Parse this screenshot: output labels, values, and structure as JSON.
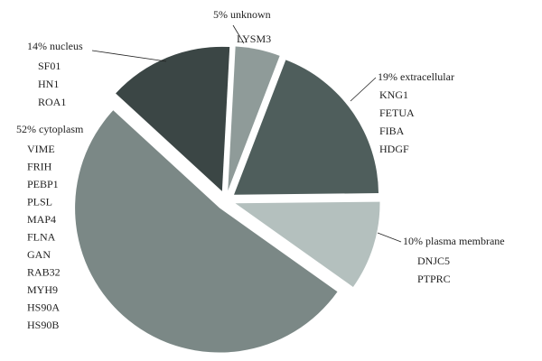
{
  "chart_data": {
    "type": "pie",
    "categories": [
      "unknown",
      "extracellular",
      "plasma membrane",
      "cytoplasm",
      "nucleus"
    ],
    "values": [
      5,
      19,
      10,
      52,
      14
    ],
    "value_labels": [
      "5%",
      "19%",
      "10%",
      "52%",
      "14%"
    ],
    "colors": [
      "#8f9b99",
      "#4f5e5c",
      "#b4c0be",
      "#7b8886",
      "#3b4645"
    ],
    "proteins": [
      [
        "LYSM3"
      ],
      [
        "KNG1",
        "FETUA",
        "FIBA",
        "HDGF"
      ],
      [
        "DNJC5",
        "PTPRC"
      ],
      [
        "VIME",
        "FRIH",
        "PEBP1",
        "PLSL",
        "MAP4",
        "FLNA",
        "GAN",
        "RAB32",
        "MYH9",
        "HS90A",
        "HS90B"
      ],
      [
        "SF01",
        "HN1",
        "ROA1"
      ]
    ]
  }
}
